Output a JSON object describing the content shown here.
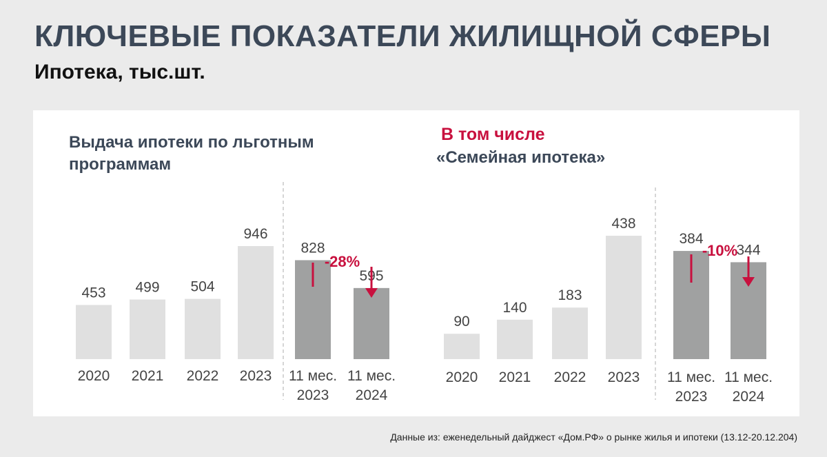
{
  "header": {
    "title": "КЛЮЧЕВЫЕ ПОКАЗАТЕЛИ ЖИЛИЩНОЙ СФЕРЫ",
    "subtitle": "Ипотека, тыс.шт."
  },
  "footer": {
    "source": "Данные из: еженедельный дайджест «Дом.РФ» о рынке жилья и ипотеки (13.12-20.12.204)"
  },
  "colors": {
    "bar_light": "#e0e0e0",
    "bar_dark": "#a0a1a1",
    "accent": "#c8103e",
    "title": "#3c4858",
    "text": "#444444"
  },
  "chart_data": [
    {
      "type": "bar",
      "title": "Выдача ипотеки по льготным программам",
      "title_lines": [
        "Выдача ипотеки по льготным",
        "программам"
      ],
      "categories": [
        "2020",
        "2021",
        "2022",
        "2023",
        "11 мес.\n2023",
        "11 мес.\n2024"
      ],
      "values": [
        453,
        499,
        504,
        946,
        828,
        595
      ],
      "highlighted": [
        false,
        false,
        false,
        false,
        true,
        true
      ],
      "ylim": [
        0,
        946
      ],
      "change": {
        "label": "-28%",
        "from_index": 4,
        "to_index": 5
      }
    },
    {
      "type": "bar",
      "pre_title": "В том числе",
      "title": "«Семейная ипотека»",
      "categories": [
        "2020",
        "2021",
        "2022",
        "2023",
        "11 мес.\n2023",
        "11 мес.\n2024"
      ],
      "values": [
        90,
        140,
        183,
        438,
        384,
        344
      ],
      "highlighted": [
        false,
        false,
        false,
        false,
        true,
        true
      ],
      "ylim": [
        0,
        438
      ],
      "change": {
        "label": "-10%",
        "from_index": 4,
        "to_index": 5
      }
    }
  ]
}
